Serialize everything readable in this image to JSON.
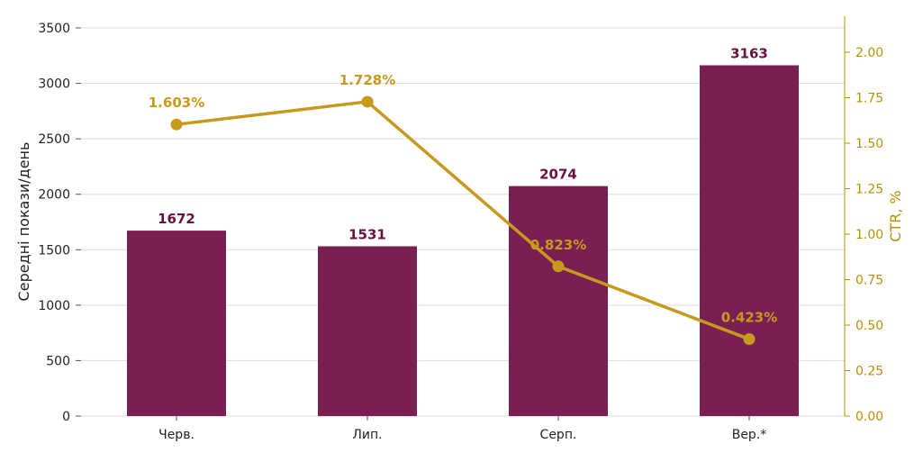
{
  "chart_data": {
    "type": "bar",
    "categories": [
      "Черв.",
      "Лип.",
      "Серп.",
      "Вер.*"
    ],
    "series": [
      {
        "type": "bar",
        "axis": "left",
        "values": [
          1672,
          1531,
          2074,
          3163
        ],
        "labels": [
          "1672",
          "1531",
          "2074",
          "3163"
        ]
      },
      {
        "type": "line",
        "axis": "right",
        "values": [
          1.603,
          1.728,
          0.823,
          0.423
        ],
        "labels": [
          "1.603%",
          "1.728%",
          "0.823%",
          "0.423%"
        ]
      }
    ],
    "ylabel": "Середні покази/день",
    "y2label": "CTR, %",
    "ylim": [
      0,
      3500
    ],
    "y2lim": [
      0,
      2.2
    ],
    "yticks": [
      "0",
      "500",
      "1000",
      "1500",
      "2000",
      "2500",
      "3000",
      "3500"
    ],
    "y2ticks": [
      "0.00",
      "0.25",
      "0.50",
      "0.75",
      "1.00",
      "1.25",
      "1.50",
      "1.75",
      "2.00"
    ],
    "grid": true,
    "colors": {
      "bar": "#7b1f52",
      "bar_label": "#6b1040",
      "line": "#c79a1e",
      "right_axis": "#b8900e"
    }
  }
}
